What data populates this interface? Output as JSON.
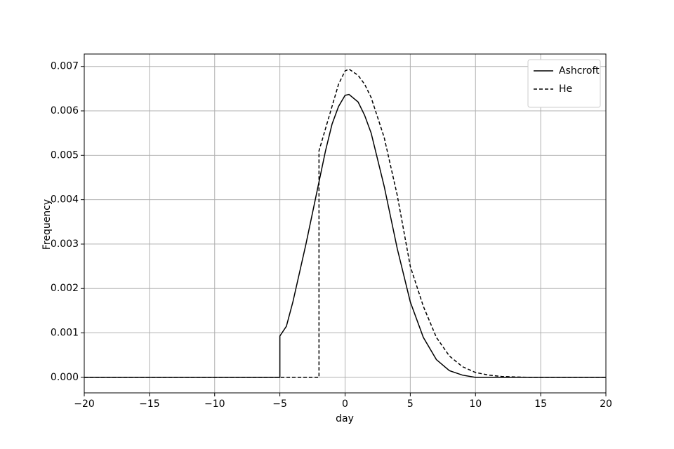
{
  "chart_data": {
    "type": "line",
    "xlabel": "day",
    "ylabel": "Frequency",
    "x": [
      -20,
      -5,
      -5,
      -4.5,
      -4,
      -3,
      -2,
      -2,
      -1.5,
      -1,
      -0.5,
      0,
      0.3,
      1,
      1.5,
      2,
      3,
      4,
      5,
      6,
      7,
      8,
      9,
      10,
      11,
      12,
      13,
      14,
      15,
      20
    ],
    "series": [
      {
        "name": "Ashcroft",
        "color": "#000000",
        "dash": "solid",
        "values": [
          0,
          0,
          0.00093,
          0.00115,
          0.0017,
          0.003,
          0.0044,
          0.0044,
          0.0051,
          0.0057,
          0.0061,
          0.00635,
          0.00637,
          0.0062,
          0.0059,
          0.0055,
          0.0043,
          0.0029,
          0.0017,
          0.0009,
          0.0004,
          0.00015,
          5e-05,
          0,
          0,
          0,
          0,
          0,
          0,
          0
        ]
      },
      {
        "name": "He",
        "color": "#000000",
        "dash": "dashed",
        "values": [
          0,
          0,
          0,
          0,
          0,
          0,
          0,
          0.0051,
          0.0056,
          0.0061,
          0.0066,
          0.0069,
          0.00694,
          0.0068,
          0.0066,
          0.0063,
          0.0054,
          0.0041,
          0.0025,
          0.0016,
          0.0009,
          0.00048,
          0.00024,
          0.00011,
          5e-05,
          2e-05,
          1e-05,
          0,
          0,
          0
        ]
      }
    ],
    "xlim": [
      -20,
      20
    ],
    "xticks": [
      {
        "value": -20,
        "label": "−20"
      },
      {
        "value": -15,
        "label": "−15"
      },
      {
        "value": -10,
        "label": "−10"
      },
      {
        "value": -5,
        "label": "−5"
      },
      0,
      5,
      10,
      15,
      20
    ],
    "ylim": [
      -0.00035,
      0.00728
    ],
    "yticks": [
      {
        "value": 0,
        "label": "0.000"
      },
      {
        "value": 0.001,
        "label": "0.001"
      },
      {
        "value": 0.002,
        "label": "0.002"
      },
      {
        "value": 0.003,
        "label": "0.003"
      },
      {
        "value": 0.004,
        "label": "0.004"
      },
      {
        "value": 0.005,
        "label": "0.005"
      },
      {
        "value": 0.006,
        "label": "0.006"
      },
      {
        "value": 0.007,
        "label": "0.007"
      }
    ],
    "grid": true,
    "legend": "upper right"
  }
}
